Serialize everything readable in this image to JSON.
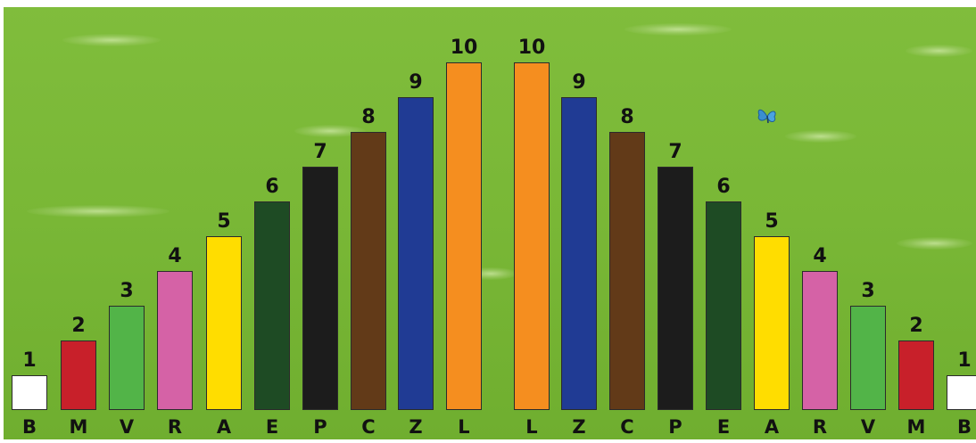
{
  "rods": [
    {
      "letter": "B",
      "number": "1",
      "value": 1,
      "color": "#ffffff"
    },
    {
      "letter": "M",
      "number": "2",
      "value": 2,
      "color": "#c8202a"
    },
    {
      "letter": "V",
      "number": "3",
      "value": 3,
      "color": "#52b448"
    },
    {
      "letter": "R",
      "number": "4",
      "value": 4,
      "color": "#d562a6"
    },
    {
      "letter": "A",
      "number": "5",
      "value": 5,
      "color": "#ffdd00"
    },
    {
      "letter": "E",
      "number": "6",
      "value": 6,
      "color": "#1e4b24"
    },
    {
      "letter": "P",
      "number": "7",
      "value": 7,
      "color": "#1c1c1c"
    },
    {
      "letter": "C",
      "number": "8",
      "value": 8,
      "color": "#623a18"
    },
    {
      "letter": "Z",
      "number": "9",
      "value": 9,
      "color": "#203b94"
    },
    {
      "letter": "L",
      "number": "10",
      "value": 10,
      "color": "#f58e1f"
    },
    {
      "letter": "L",
      "number": "10",
      "value": 10,
      "color": "#f58e1f"
    },
    {
      "letter": "Z",
      "number": "9",
      "value": 9,
      "color": "#203b94"
    },
    {
      "letter": "C",
      "number": "8",
      "value": 8,
      "color": "#623a18"
    },
    {
      "letter": "P",
      "number": "7",
      "value": 7,
      "color": "#1c1c1c"
    },
    {
      "letter": "E",
      "number": "6",
      "value": 6,
      "color": "#1e4b24"
    },
    {
      "letter": "A",
      "number": "5",
      "value": 5,
      "color": "#ffdd00"
    },
    {
      "letter": "R",
      "number": "4",
      "value": 4,
      "color": "#d562a6"
    },
    {
      "letter": "V",
      "number": "3",
      "value": 3,
      "color": "#52b448"
    },
    {
      "letter": "M",
      "number": "2",
      "value": 2,
      "color": "#c8202a"
    },
    {
      "letter": "B",
      "number": "1",
      "value": 1,
      "color": "#ffffff"
    }
  ],
  "decor": {
    "butterfly_icon": "butterfly-icon",
    "butterfly_color": "#3a8fd0",
    "background_color": "#7dbb3a"
  }
}
